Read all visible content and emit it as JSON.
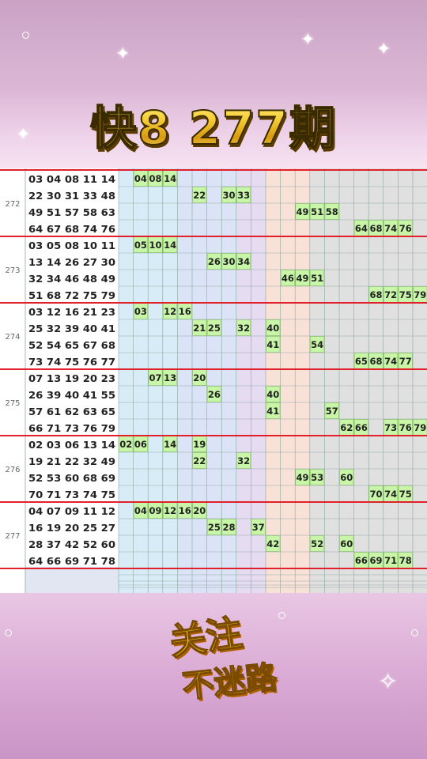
{
  "title": "快8  277期",
  "footer": {
    "line1": "关注",
    "line2": "不迷路"
  },
  "draws": [
    {
      "period": "272",
      "rows": [
        "03 04 08 11 14",
        "22 30 31 33 48",
        "49 51 57 58 63",
        "64 67 68 74 76"
      ]
    },
    {
      "period": "273",
      "rows": [
        "03 05 08 10 11",
        "13 14 26 27 30",
        "32 34 46 48 49",
        "51 68 72 75 79"
      ]
    },
    {
      "period": "274",
      "rows": [
        "03 12 16 21 23",
        "25 32 39 40 41",
        "52 54 65 67 68",
        "73 74 75 76 77"
      ]
    },
    {
      "period": "275",
      "rows": [
        "07 13 19 20 23",
        "26 39 40 41 55",
        "57 61 62 63 65",
        "66 71 73 76 79"
      ]
    },
    {
      "period": "276",
      "rows": [
        "02 03 06 13 14",
        "19 21 22 32 49",
        "52 53 60 68 69",
        "70 71 73 74 75"
      ]
    },
    {
      "period": "277",
      "rows": [
        "04 07 09 11 12",
        "16 19 20 25 27",
        "28 37 42 52 60",
        "64 66 69 71 78"
      ]
    }
  ],
  "grid_rows": [
    [
      "03",
      "04",
      "08",
      "11",
      "14"
    ],
    [
      "22",
      "30",
      "31",
      "33"
    ],
    [
      "48",
      "49",
      "51",
      "57",
      "58"
    ],
    [
      "63",
      "64",
      "67",
      "68",
      "74",
      "76"
    ],
    [
      "03",
      "05",
      "08",
      "10",
      "11",
      "13",
      "14"
    ],
    [
      "26",
      "27",
      "30",
      "32",
      "34"
    ],
    [
      "46",
      "48",
      "49",
      "51"
    ],
    [
      "68",
      "72",
      "75",
      "79"
    ],
    [
      "03",
      "12",
      "16"
    ],
    [
      "21",
      "23",
      "25",
      "32",
      "39",
      "40"
    ],
    [
      "41",
      "52",
      "54"
    ],
    [
      "65",
      "67",
      "68",
      "73",
      "74",
      "75",
      "76",
      "77"
    ],
    [
      "07",
      "13",
      "19",
      "20"
    ],
    [
      "23",
      "26",
      "39",
      "40"
    ],
    [
      "41",
      "55",
      "57"
    ],
    [
      "61",
      "62",
      "63",
      "65",
      "66",
      "71",
      "73",
      "76",
      "79"
    ],
    [
      "02",
      "03",
      "06",
      "13",
      "14",
      "19"
    ],
    [
      "21",
      "22",
      "32"
    ],
    [
      "49",
      "52",
      "53",
      "60"
    ],
    [
      "68",
      "69",
      "70",
      "71",
      "73",
      "74",
      "75"
    ],
    [
      "04",
      "07",
      "09",
      "11",
      "12",
      "16",
      "19",
      "20"
    ],
    [
      "25",
      "27",
      "28",
      "37"
    ],
    [
      "42",
      "52",
      "60"
    ],
    [
      "64",
      "66",
      "69",
      "71",
      "78"
    ]
  ]
}
